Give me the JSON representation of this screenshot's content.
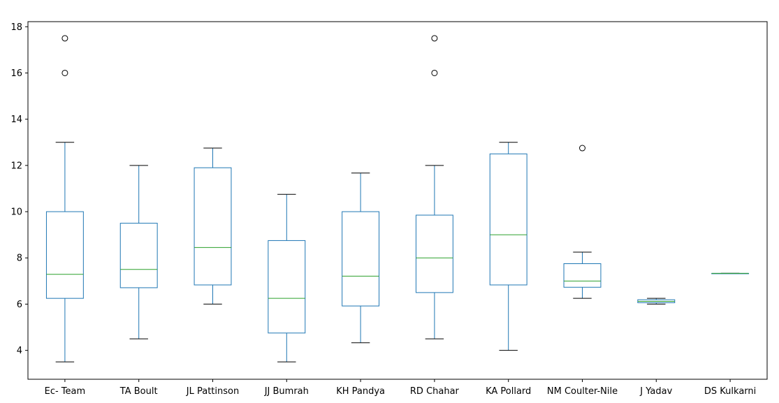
{
  "chart_data": {
    "type": "box",
    "title": "",
    "xlabel": "",
    "ylabel": "",
    "ylim": [
      2.75,
      18.22
    ],
    "yticks": [
      4,
      6,
      8,
      10,
      12,
      14,
      16,
      18
    ],
    "grid": false,
    "categories": [
      "Ec- Team",
      "TA Boult",
      "JL Pattinson",
      "JJ Bumrah",
      "KH Pandya",
      "RD Chahar",
      "KA Pollard",
      "NM Coulter-Nile",
      "J Yadav",
      "DS Kulkarni"
    ],
    "boxes": [
      {
        "label": "Ec- Team",
        "whisker_low": 3.5,
        "q1": 6.25,
        "median": 7.29,
        "q3": 10.0,
        "whisker_high": 13.0,
        "outliers": [
          16.0,
          17.5
        ]
      },
      {
        "label": "TA Boult",
        "whisker_low": 4.5,
        "q1": 6.71,
        "median": 7.5,
        "q3": 9.5,
        "whisker_high": 12.0,
        "outliers": []
      },
      {
        "label": "JL Pattinson",
        "whisker_low": 6.0,
        "q1": 6.83,
        "median": 8.45,
        "q3": 11.9,
        "whisker_high": 12.75,
        "outliers": []
      },
      {
        "label": "JJ Bumrah",
        "whisker_low": 3.5,
        "q1": 4.75,
        "median": 6.25,
        "q3": 8.75,
        "whisker_high": 10.75,
        "outliers": []
      },
      {
        "label": "KH Pandya",
        "whisker_low": 4.33,
        "q1": 5.92,
        "median": 7.21,
        "q3": 10.0,
        "whisker_high": 11.67,
        "outliers": []
      },
      {
        "label": "RD Chahar",
        "whisker_low": 4.5,
        "q1": 6.5,
        "median": 8.0,
        "q3": 9.85,
        "whisker_high": 12.0,
        "outliers": [
          16.0,
          17.5
        ]
      },
      {
        "label": "KA Pollard",
        "whisker_low": 4.0,
        "q1": 6.83,
        "median": 9.0,
        "q3": 12.5,
        "whisker_high": 13.0,
        "outliers": []
      },
      {
        "label": "NM Coulter-Nile",
        "whisker_low": 6.25,
        "q1": 6.73,
        "median": 7.0,
        "q3": 7.75,
        "whisker_high": 8.25,
        "outliers": [
          12.75
        ]
      },
      {
        "label": "J Yadav",
        "whisker_low": 6.0,
        "q1": 6.06,
        "median": 6.12,
        "q3": 6.19,
        "whisker_high": 6.25,
        "outliers": []
      },
      {
        "label": "DS Kulkarni",
        "whisker_low": 7.33,
        "q1": 7.33,
        "median": 7.33,
        "q3": 7.33,
        "whisker_high": 7.33,
        "outliers": []
      }
    ],
    "colors": {
      "box": "#1f77b4",
      "median": "#2ca02c",
      "cap": "#000000",
      "outlier": "#000000",
      "axis": "#000000"
    }
  }
}
